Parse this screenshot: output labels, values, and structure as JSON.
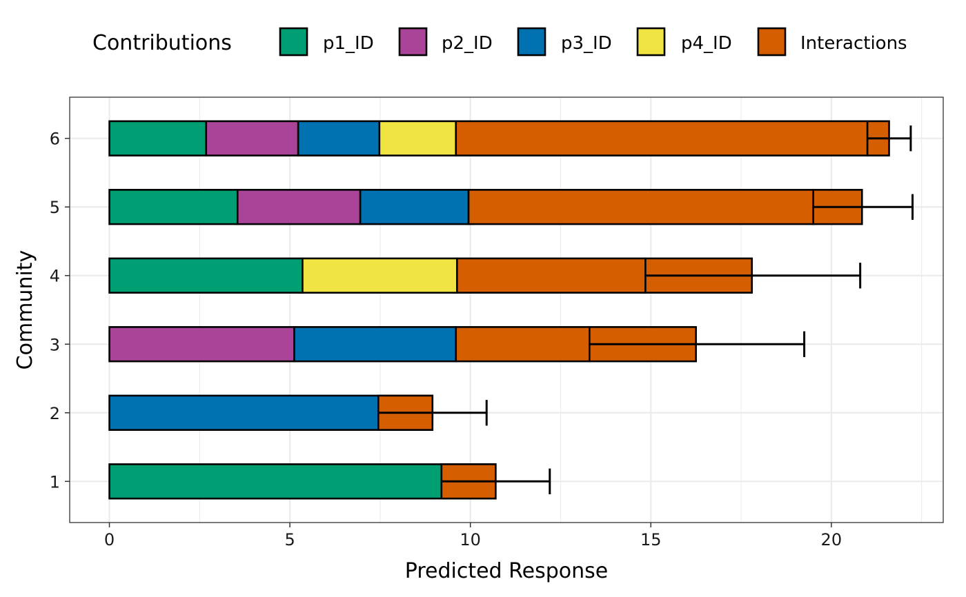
{
  "chart_data": {
    "type": "bar",
    "orientation": "horizontal",
    "stacked": true,
    "title": "",
    "xlabel": "Predicted Response",
    "ylabel": "Community",
    "xlim": [
      -1.1,
      23.1
    ],
    "x_ticks": [
      0,
      5,
      10,
      15,
      20
    ],
    "grid": true,
    "legend": {
      "title": "Contributions",
      "position": "top",
      "entries": [
        "p1_ID",
        "p2_ID",
        "p3_ID",
        "p4_ID",
        "Interactions"
      ]
    },
    "categories": [
      "1",
      "2",
      "3",
      "4",
      "5",
      "6"
    ],
    "colors": {
      "p1_ID": "#009E73",
      "p2_ID": "#AA4499",
      "p3_ID": "#0072B2",
      "p4_ID": "#F0E442",
      "Interactions": "#D55E00"
    },
    "series": [
      {
        "name": "p1_ID",
        "values": [
          9.2,
          0,
          0,
          5.35,
          3.55,
          2.68
        ]
      },
      {
        "name": "p2_ID",
        "values": [
          0,
          0,
          5.12,
          0,
          3.4,
          2.55
        ]
      },
      {
        "name": "p3_ID",
        "values": [
          0,
          7.45,
          4.48,
          0,
          3.0,
          2.25
        ]
      },
      {
        "name": "p4_ID",
        "values": [
          0,
          0,
          0,
          4.28,
          0,
          2.12
        ]
      },
      {
        "name": "Interactions",
        "values": [
          1.5,
          1.5,
          3.7,
          5.22,
          9.55,
          11.4
        ]
      }
    ],
    "secondary_segments": [
      {
        "category": "1",
        "start": 9.2,
        "end": 10.7
      },
      {
        "category": "2",
        "start": 7.45,
        "end": 8.95
      },
      {
        "category": "3",
        "start": 13.3,
        "end": 16.25
      },
      {
        "category": "4",
        "start": 14.85,
        "end": 17.8
      },
      {
        "category": "5",
        "start": 19.5,
        "end": 20.85
      },
      {
        "category": "6",
        "start": 21.0,
        "end": 21.6
      }
    ],
    "error_bars": [
      {
        "category": "1",
        "low": 9.2,
        "high": 12.2
      },
      {
        "category": "2",
        "low": 7.45,
        "high": 10.45
      },
      {
        "category": "3",
        "low": 13.3,
        "high": 19.25
      },
      {
        "category": "4",
        "low": 14.85,
        "high": 20.8
      },
      {
        "category": "5",
        "low": 19.5,
        "high": 22.25
      },
      {
        "category": "6",
        "low": 21.0,
        "high": 22.2
      }
    ]
  }
}
